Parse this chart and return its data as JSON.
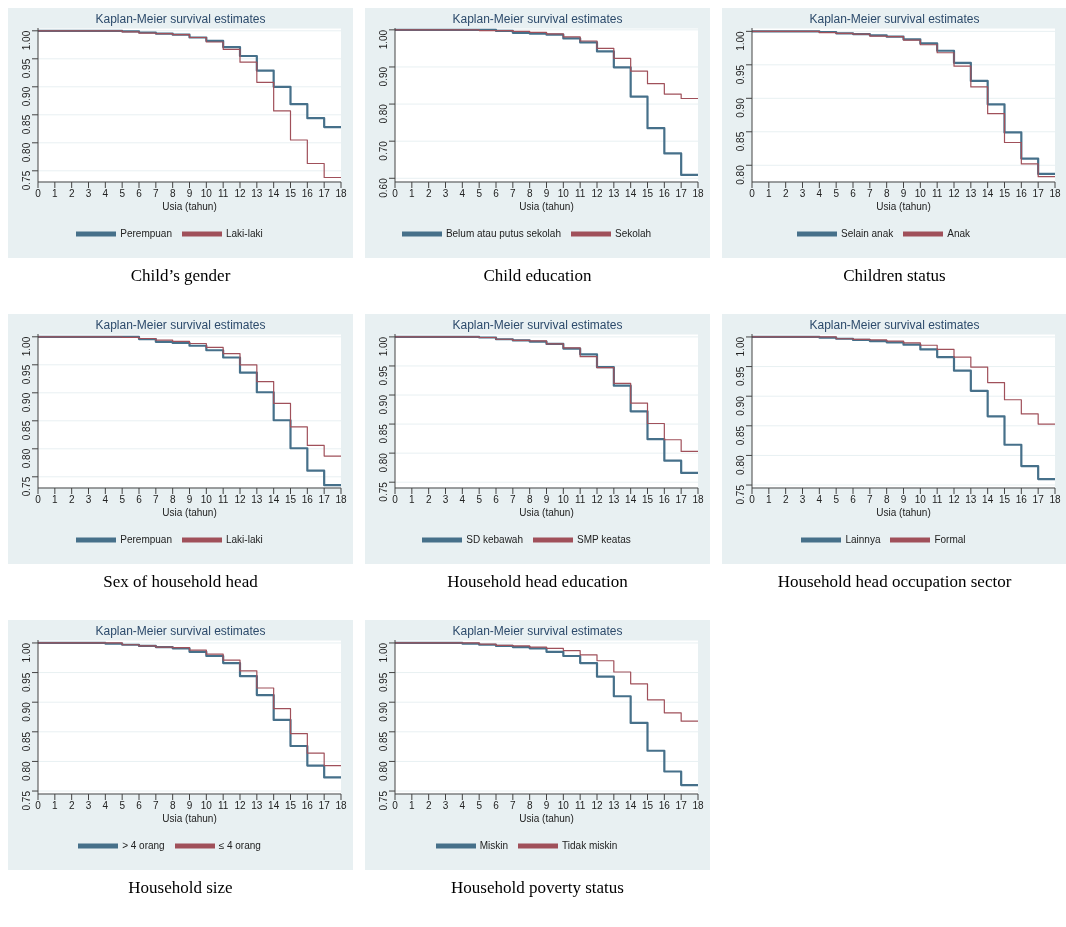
{
  "chart_data": [
    {
      "type": "step",
      "title": "Kaplan-Meier survival estimates",
      "xlabel": "Usia (tahun)",
      "annotations": [
        "Child’s gender"
      ],
      "x": [
        0,
        1,
        2,
        3,
        4,
        5,
        6,
        7,
        8,
        9,
        10,
        11,
        12,
        13,
        14,
        15,
        16,
        17,
        18
      ],
      "xlim": [
        0,
        18
      ],
      "xticks": [
        0,
        1,
        2,
        3,
        4,
        5,
        6,
        7,
        8,
        9,
        10,
        11,
        12,
        13,
        14,
        15,
        16,
        17,
        18
      ],
      "ylim": [
        0.73,
        1.005
      ],
      "yticks": [
        {
          "value": 0.75,
          "label": "0.75"
        },
        {
          "value": 0.8,
          "label": "0.80"
        },
        {
          "value": 0.85,
          "label": "0.85"
        },
        {
          "value": 0.9,
          "label": "0.90"
        },
        {
          "value": 0.95,
          "label": "0.95"
        },
        {
          "value": 1,
          "label": "1.00"
        }
      ],
      "grid": "y",
      "legend": "bottom",
      "marker": "none",
      "line_style": "solid",
      "series": [
        {
          "name": "Perempuan",
          "color": "#46708a",
          "values": [
            1,
            1,
            1,
            1,
            1,
            0.999,
            0.997,
            0.995,
            0.993,
            0.988,
            0.982,
            0.971,
            0.955,
            0.929,
            0.9,
            0.869,
            0.844,
            0.828,
            0.828
          ]
        },
        {
          "name": "Laki-laki",
          "color": "#a0505a",
          "values": [
            1,
            1,
            1,
            1,
            1,
            0.998,
            0.996,
            0.995,
            0.993,
            0.988,
            0.98,
            0.967,
            0.944,
            0.908,
            0.857,
            0.805,
            0.763,
            0.738,
            0.738
          ]
        }
      ]
    },
    {
      "type": "step",
      "title": "Kaplan-Meier survival estimates",
      "xlabel": "Usia (tahun)",
      "annotations": [
        "Child education"
      ],
      "x": [
        0,
        1,
        2,
        3,
        4,
        5,
        6,
        7,
        8,
        9,
        10,
        11,
        12,
        13,
        14,
        15,
        16,
        17,
        18
      ],
      "xlim": [
        0,
        18
      ],
      "xticks": [
        0,
        1,
        2,
        3,
        4,
        5,
        6,
        7,
        8,
        9,
        10,
        11,
        12,
        13,
        14,
        15,
        16,
        17,
        18
      ],
      "ylim": [
        0.59,
        1.005
      ],
      "yticks": [
        {
          "value": 0.6,
          "label": "0.60"
        },
        {
          "value": 0.7,
          "label": "0.70"
        },
        {
          "value": 0.8,
          "label": "0.80"
        },
        {
          "value": 0.9,
          "label": "0.90"
        },
        {
          "value": 1,
          "label": "1.00"
        }
      ],
      "grid": "y",
      "legend": "bottom",
      "marker": "none",
      "line_style": "solid",
      "series": [
        {
          "name": "Belum atau putus sekolah",
          "color": "#46708a",
          "values": [
            1,
            1,
            1,
            1,
            1,
            1,
            0.997,
            0.992,
            0.99,
            0.987,
            0.977,
            0.966,
            0.942,
            0.899,
            0.82,
            0.735,
            0.667,
            0.609,
            0.609
          ]
        },
        {
          "name": "Sekolah",
          "color": "#a0505a",
          "values": [
            1,
            1,
            1,
            1,
            1,
            0.998,
            0.998,
            0.996,
            0.993,
            0.989,
            0.981,
            0.97,
            0.95,
            0.923,
            0.889,
            0.855,
            0.827,
            0.815,
            0.815
          ]
        }
      ]
    },
    {
      "type": "step",
      "title": "Kaplan-Meier survival estimates",
      "xlabel": "Usia (tahun)",
      "annotations": [
        "Children status"
      ],
      "x": [
        0,
        1,
        2,
        3,
        4,
        5,
        6,
        7,
        8,
        9,
        10,
        11,
        12,
        13,
        14,
        15,
        16,
        17,
        18
      ],
      "xlim": [
        0,
        18
      ],
      "xticks": [
        0,
        1,
        2,
        3,
        4,
        5,
        6,
        7,
        8,
        9,
        10,
        11,
        12,
        13,
        14,
        15,
        16,
        17,
        18
      ],
      "ylim": [
        0.775,
        1.005
      ],
      "yticks": [
        {
          "value": 0.8,
          "label": "0.80"
        },
        {
          "value": 0.85,
          "label": "0.85"
        },
        {
          "value": 0.9,
          "label": "0.90"
        },
        {
          "value": 0.95,
          "label": "0.95"
        },
        {
          "value": 1,
          "label": "1.00"
        }
      ],
      "grid": "y",
      "legend": "bottom",
      "marker": "none",
      "line_style": "solid",
      "series": [
        {
          "name": "Selain anak",
          "color": "#46708a",
          "values": [
            1,
            1,
            1,
            1,
            0.999,
            0.997,
            0.996,
            0.994,
            0.992,
            0.988,
            0.982,
            0.971,
            0.953,
            0.926,
            0.891,
            0.849,
            0.81,
            0.787,
            0.787
          ]
        },
        {
          "name": "Anak",
          "color": "#a0505a",
          "values": [
            1,
            1,
            1,
            1,
            0.998,
            0.997,
            0.996,
            0.993,
            0.992,
            0.987,
            0.98,
            0.968,
            0.948,
            0.917,
            0.877,
            0.834,
            0.802,
            0.783,
            0.783
          ]
        }
      ]
    },
    {
      "type": "step",
      "title": "Kaplan-Meier survival estimates",
      "xlabel": "Usia (tahun)",
      "annotations": [
        "Sex of household head"
      ],
      "x": [
        0,
        1,
        2,
        3,
        4,
        5,
        6,
        7,
        8,
        9,
        10,
        11,
        12,
        13,
        14,
        15,
        16,
        17,
        18
      ],
      "xlim": [
        0,
        18
      ],
      "xticks": [
        0,
        1,
        2,
        3,
        4,
        5,
        6,
        7,
        8,
        9,
        10,
        11,
        12,
        13,
        14,
        15,
        16,
        17,
        18
      ],
      "ylim": [
        0.73,
        1.005
      ],
      "yticks": [
        {
          "value": 0.75,
          "label": "0.75"
        },
        {
          "value": 0.8,
          "label": "0.80"
        },
        {
          "value": 0.85,
          "label": "0.85"
        },
        {
          "value": 0.9,
          "label": "0.90"
        },
        {
          "value": 0.95,
          "label": "0.95"
        },
        {
          "value": 1,
          "label": "1.00"
        }
      ],
      "grid": "y",
      "legend": "bottom",
      "marker": "none",
      "line_style": "solid",
      "series": [
        {
          "name": "Perempuan",
          "color": "#46708a",
          "values": [
            1,
            1,
            1,
            1,
            1,
            1,
            0.996,
            0.991,
            0.989,
            0.984,
            0.976,
            0.963,
            0.936,
            0.901,
            0.851,
            0.801,
            0.761,
            0.735,
            0.735
          ]
        },
        {
          "name": "Laki-laki",
          "color": "#a0505a",
          "values": [
            1,
            1,
            1,
            1,
            1,
            0.999,
            0.997,
            0.994,
            0.992,
            0.988,
            0.981,
            0.97,
            0.95,
            0.92,
            0.881,
            0.839,
            0.806,
            0.787,
            0.787
          ]
        }
      ]
    },
    {
      "type": "step",
      "title": "Kaplan-Meier survival estimates",
      "xlabel": "Usia (tahun)",
      "annotations": [
        "Household head education"
      ],
      "x": [
        0,
        1,
        2,
        3,
        4,
        5,
        6,
        7,
        8,
        9,
        10,
        11,
        12,
        13,
        14,
        15,
        16,
        17,
        18
      ],
      "xlim": [
        0,
        18
      ],
      "xticks": [
        0,
        1,
        2,
        3,
        4,
        5,
        6,
        7,
        8,
        9,
        10,
        11,
        12,
        13,
        14,
        15,
        16,
        17,
        18
      ],
      "ylim": [
        0.74,
        1.005
      ],
      "yticks": [
        {
          "value": 0.75,
          "label": "0.75"
        },
        {
          "value": 0.8,
          "label": "0.80"
        },
        {
          "value": 0.85,
          "label": "0.85"
        },
        {
          "value": 0.9,
          "label": "0.90"
        },
        {
          "value": 0.95,
          "label": "0.95"
        },
        {
          "value": 1,
          "label": "1.00"
        }
      ],
      "grid": "y",
      "legend": "bottom",
      "marker": "none",
      "line_style": "solid",
      "series": [
        {
          "name": "SD kebawah",
          "color": "#46708a",
          "values": [
            1,
            1,
            1,
            1,
            1,
            0.999,
            0.996,
            0.994,
            0.992,
            0.988,
            0.98,
            0.97,
            0.948,
            0.916,
            0.872,
            0.824,
            0.787,
            0.766,
            0.766
          ]
        },
        {
          "name": "SMP keatas",
          "color": "#a0505a",
          "values": [
            1,
            1,
            1,
            1,
            1,
            0.999,
            0.996,
            0.994,
            0.993,
            0.988,
            0.981,
            0.966,
            0.947,
            0.92,
            0.886,
            0.851,
            0.823,
            0.803,
            0.803
          ]
        }
      ]
    },
    {
      "type": "step",
      "title": "Kaplan-Meier survival estimates",
      "xlabel": "Usia (tahun)",
      "annotations": [
        "Household head occupation sector"
      ],
      "x": [
        0,
        1,
        2,
        3,
        4,
        5,
        6,
        7,
        8,
        9,
        10,
        11,
        12,
        13,
        14,
        15,
        16,
        17,
        18
      ],
      "xlim": [
        0,
        18
      ],
      "xticks": [
        0,
        1,
        2,
        3,
        4,
        5,
        6,
        7,
        8,
        9,
        10,
        11,
        12,
        13,
        14,
        15,
        16,
        17,
        18
      ],
      "ylim": [
        0.745,
        1.005
      ],
      "yticks": [
        {
          "value": 0.75,
          "label": "0.75"
        },
        {
          "value": 0.8,
          "label": "0.80"
        },
        {
          "value": 0.85,
          "label": "0.85"
        },
        {
          "value": 0.9,
          "label": "0.90"
        },
        {
          "value": 0.95,
          "label": "0.95"
        },
        {
          "value": 1,
          "label": "1.00"
        }
      ],
      "grid": "y",
      "legend": "bottom",
      "marker": "none",
      "line_style": "solid",
      "series": [
        {
          "name": "Lainnya",
          "color": "#46708a",
          "values": [
            1,
            1,
            1,
            1,
            0.999,
            0.997,
            0.995,
            0.993,
            0.991,
            0.987,
            0.979,
            0.966,
            0.943,
            0.909,
            0.866,
            0.818,
            0.782,
            0.76,
            0.76
          ]
        },
        {
          "name": "Formal",
          "color": "#a0505a",
          "values": [
            1,
            1,
            1,
            1,
            1,
            0.997,
            0.996,
            0.995,
            0.993,
            0.99,
            0.986,
            0.979,
            0.966,
            0.949,
            0.923,
            0.894,
            0.87,
            0.853,
            0.853
          ]
        }
      ]
    },
    {
      "type": "step",
      "title": "Kaplan-Meier survival estimates",
      "xlabel": "Usia (tahun)",
      "annotations": [
        "Household size"
      ],
      "x": [
        0,
        1,
        2,
        3,
        4,
        5,
        6,
        7,
        8,
        9,
        10,
        11,
        12,
        13,
        14,
        15,
        16,
        17,
        18
      ],
      "xlim": [
        0,
        18
      ],
      "xticks": [
        0,
        1,
        2,
        3,
        4,
        5,
        6,
        7,
        8,
        9,
        10,
        11,
        12,
        13,
        14,
        15,
        16,
        17,
        18
      ],
      "ylim": [
        0.745,
        1.005
      ],
      "yticks": [
        {
          "value": 0.75,
          "label": "0.75"
        },
        {
          "value": 0.8,
          "label": "0.80"
        },
        {
          "value": 0.85,
          "label": "0.85"
        },
        {
          "value": 0.9,
          "label": "0.90"
        },
        {
          "value": 0.95,
          "label": "0.95"
        },
        {
          "value": 1,
          "label": "1.00"
        }
      ],
      "grid": "y",
      "legend": "bottom",
      "marker": "none",
      "line_style": "solid",
      "series": [
        {
          "name": "> 4 orang",
          "color": "#46708a",
          "values": [
            1,
            1,
            1,
            1,
            0.999,
            0.997,
            0.995,
            0.993,
            0.991,
            0.985,
            0.978,
            0.966,
            0.944,
            0.912,
            0.87,
            0.826,
            0.793,
            0.773,
            0.773
          ]
        },
        {
          "name": "≤ 4 orang",
          "color": "#a0505a",
          "values": [
            1,
            1,
            1,
            1,
            1,
            0.997,
            0.995,
            0.993,
            0.992,
            0.988,
            0.981,
            0.971,
            0.953,
            0.924,
            0.889,
            0.847,
            0.814,
            0.793,
            0.793
          ]
        }
      ]
    },
    {
      "type": "step",
      "title": "Kaplan-Meier survival estimates",
      "xlabel": "Usia (tahun)",
      "annotations": [
        "Household poverty status"
      ],
      "x": [
        0,
        1,
        2,
        3,
        4,
        5,
        6,
        7,
        8,
        9,
        10,
        11,
        12,
        13,
        14,
        15,
        16,
        17,
        18
      ],
      "xlim": [
        0,
        18
      ],
      "xticks": [
        0,
        1,
        2,
        3,
        4,
        5,
        6,
        7,
        8,
        9,
        10,
        11,
        12,
        13,
        14,
        15,
        16,
        17,
        18
      ],
      "ylim": [
        0.745,
        1.005
      ],
      "yticks": [
        {
          "value": 0.75,
          "label": "0.75"
        },
        {
          "value": 0.8,
          "label": "0.80"
        },
        {
          "value": 0.85,
          "label": "0.85"
        },
        {
          "value": 0.9,
          "label": "0.90"
        },
        {
          "value": 0.95,
          "label": "0.95"
        },
        {
          "value": 1,
          "label": "1.00"
        }
      ],
      "grid": "y",
      "legend": "bottom",
      "marker": "none",
      "line_style": "solid",
      "series": [
        {
          "name": "Miskin",
          "color": "#46708a",
          "values": [
            1,
            1,
            1,
            1,
            0.999,
            0.997,
            0.995,
            0.993,
            0.991,
            0.985,
            0.978,
            0.966,
            0.943,
            0.91,
            0.865,
            0.818,
            0.783,
            0.76,
            0.76
          ]
        },
        {
          "name": "Tidak miskin",
          "color": "#a0505a",
          "values": [
            1,
            1,
            1,
            1,
            1,
            0.998,
            0.996,
            0.995,
            0.993,
            0.991,
            0.987,
            0.98,
            0.97,
            0.951,
            0.931,
            0.904,
            0.882,
            0.868,
            0.868
          ]
        }
      ]
    }
  ]
}
